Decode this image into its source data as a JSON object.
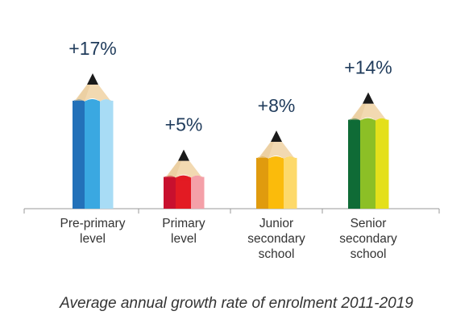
{
  "chart_data": {
    "type": "bar",
    "style": "pencil",
    "categories": [
      [
        "Pre-primary",
        "level"
      ],
      [
        "Primary",
        "level"
      ],
      [
        "Junior",
        "secondary",
        "school"
      ],
      [
        "Senior",
        "secondary",
        "school"
      ]
    ],
    "values": [
      17,
      5,
      8,
      14
    ],
    "value_labels": [
      "+17%",
      "+5%",
      "+8%",
      "+14%"
    ],
    "title": "",
    "caption": "Average annual growth rate of enrolment 2011-2019",
    "xlabel": "",
    "ylabel": "",
    "ylim": [
      0,
      17
    ],
    "grid": false,
    "legend": "none",
    "colors": [
      [
        "#2371b9",
        "#3aa8e1",
        "#a8dcf5"
      ],
      [
        "#c8102e",
        "#e31b23",
        "#f4a0a8"
      ],
      [
        "#e09b0e",
        "#fbbb0b",
        "#fdd96a"
      ],
      [
        "#0f6b36",
        "#8cbf26",
        "#e4e01b"
      ]
    ],
    "wood_color": "#f2d9b1",
    "lead_color": "#1a1a1a",
    "axis_color": "#999999"
  }
}
